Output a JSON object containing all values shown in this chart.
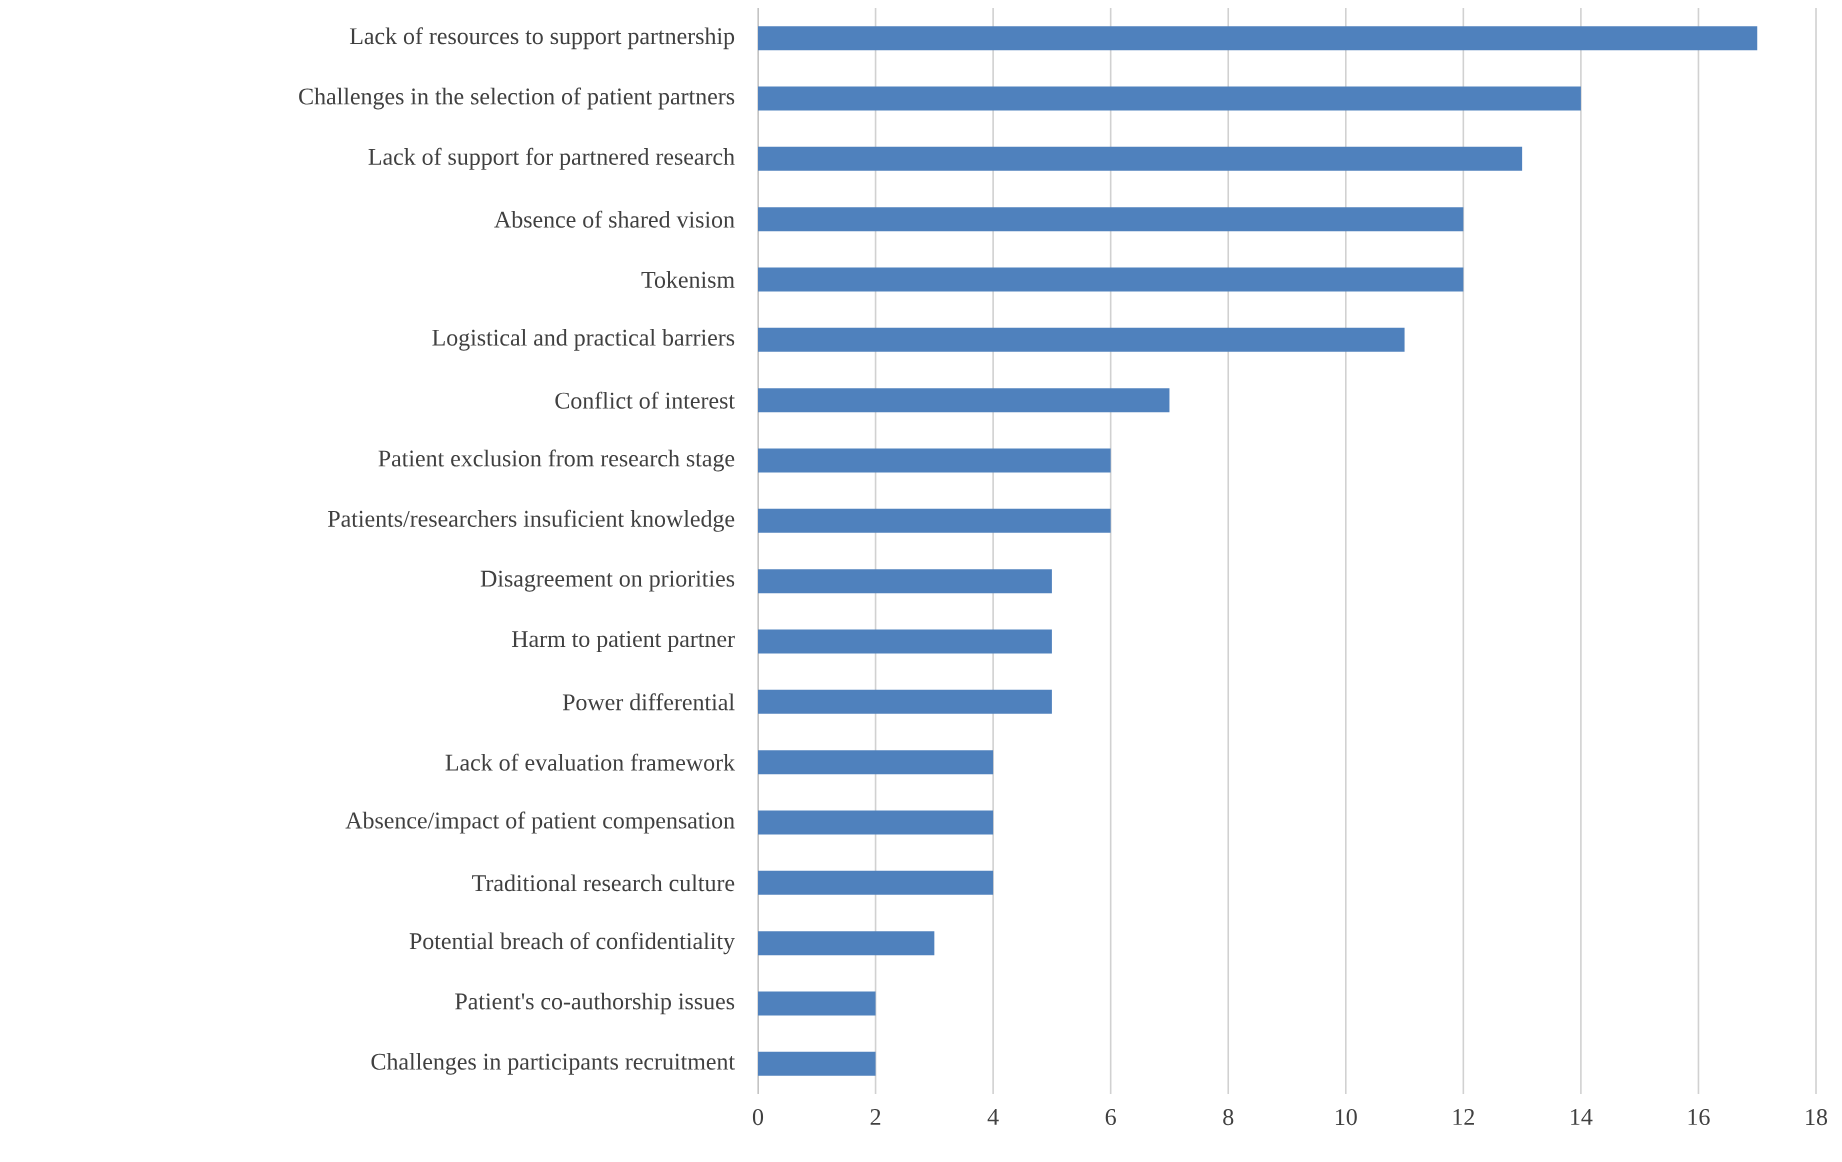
{
  "chart_data": {
    "type": "bar",
    "orientation": "horizontal",
    "categories": [
      "Lack of resources to support partnership",
      "Challenges in the selection of patient partners",
      "Lack of support for partnered research",
      "Absence of shared vision",
      "Tokenism",
      "Logistical and practical barriers",
      "Conflict of interest",
      "Patient exclusion from research stage",
      "Patients/researchers insuficient knowledge",
      "Disagreement on priorities",
      "Harm to patient partner",
      "Power differential",
      "Lack of evaluation framework",
      "Absence/impact of patient compensation",
      "Traditional research culture",
      "Potential breach of confidentiality",
      "Patient's co-authorship issues",
      "Challenges in participants recruitment"
    ],
    "values": [
      17,
      14,
      13,
      12,
      12,
      11,
      7,
      6,
      6,
      5,
      5,
      5,
      4,
      4,
      4,
      3,
      2,
      2
    ],
    "color": "#4f81bd",
    "xlim": [
      0,
      18
    ],
    "xticks": [
      0,
      2,
      4,
      6,
      8,
      10,
      12,
      14,
      16,
      18
    ],
    "grid": "x"
  }
}
